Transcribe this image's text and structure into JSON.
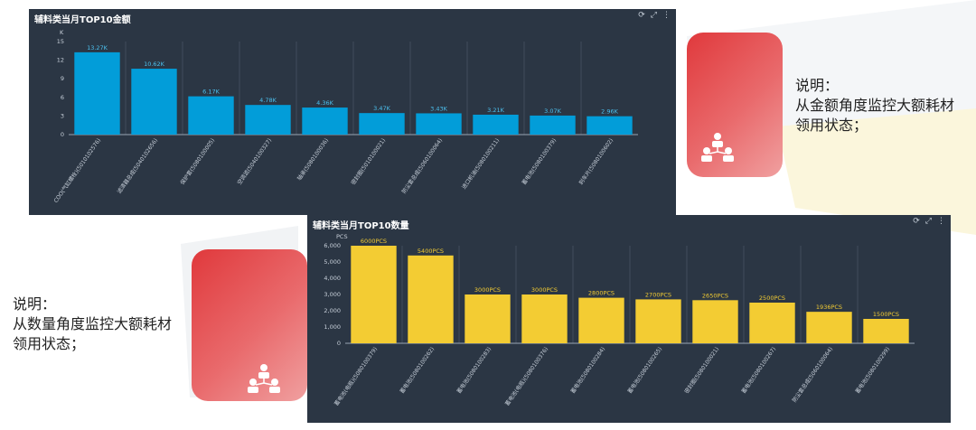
{
  "top_chart": {
    "title": "辅料类当月TOP10金额",
    "tools": [
      "refresh-icon",
      "expand-icon",
      "more-icon"
    ],
    "chart_data": {
      "type": "bar",
      "unit_label": "K",
      "categories": [
        "COO(气缸螺栓)(5010102576)",
        "滤清器总成(5040102656)",
        "保护套(5080100005)",
        "空调滤(5040100327)",
        "轴承(5080100036)",
        "密封圈(5010100021)",
        "防尘套总成(5060100064)",
        "进口机油(5080100211)",
        "蓄电池(5080100379)",
        "刹车片(5080100602)"
      ],
      "values": [
        13.27,
        10.62,
        6.17,
        4.78,
        4.36,
        3.47,
        3.43,
        3.21,
        3.07,
        2.96
      ],
      "data_labels": [
        "13.27K",
        "10.62K",
        "6.17K",
        "4.78K",
        "4.36K",
        "3.47K",
        "3.43K",
        "3.21K",
        "3.07K",
        "2.96K"
      ],
      "ylim": [
        0,
        15
      ],
      "yticks": [
        "0",
        "3",
        "6",
        "9",
        "12",
        "15"
      ],
      "color": "#029dd9"
    }
  },
  "bottom_chart": {
    "title": "辅料类当月TOP10数量",
    "tools": [
      "refresh-icon",
      "expand-icon",
      "more-icon"
    ],
    "chart_data": {
      "type": "bar",
      "unit_label": "PCS",
      "categories": [
        "蓄电池(电瓶)(5080100379)",
        "蓄电池(5080100262)",
        "蓄电池(5080100283)",
        "蓄电池(电瓶)(5080100376)",
        "蓄电池(5080100284)",
        "蓄电池(5080100265)",
        "密封圈(5080100021)",
        "蓄电池(5080100267)",
        "防尘套总成(5060100064)",
        "蓄电池(5080100299)"
      ],
      "values": [
        6000,
        5400,
        3000,
        3000,
        2800,
        2700,
        2650,
        2500,
        1936,
        1500
      ],
      "data_labels": [
        "6000PCS",
        "5400PCS",
        "3000PCS",
        "3000PCS",
        "2800PCS",
        "2700PCS",
        "2650PCS",
        "2500PCS",
        "1936PCS",
        "1500PCS"
      ],
      "ylim": [
        0,
        6000
      ],
      "yticks": [
        "0",
        "1,000",
        "2,000",
        "3,000",
        "4,000",
        "5,000",
        "6,000"
      ],
      "color": "#f3cc33"
    }
  },
  "note_top": {
    "title": "说明：",
    "body": "从金额角度监控大额耗材领用状态；"
  },
  "note_bottom": {
    "title": "说明：",
    "body": "从数量角度监控大额耗材领用状态；"
  },
  "colors": {
    "panel_bg": "#2b3644",
    "red_tile": "#e0393c"
  }
}
